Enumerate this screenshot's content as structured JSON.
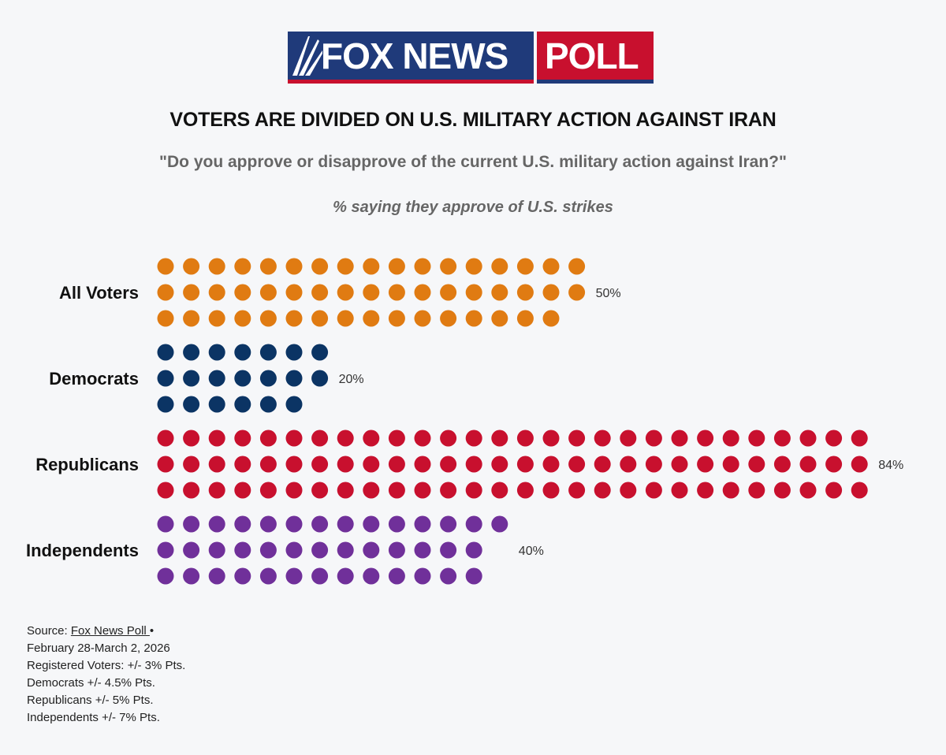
{
  "header": {
    "logo_left": "FOX NEWS",
    "logo_right": "POLL"
  },
  "title": "VOTERS ARE DIVIDED ON U.S. MILITARY ACTION AGAINST IRAN",
  "question": "\"Do you approve or disapprove of the current U.S. military action against Iran?\"",
  "subtitle": "% saying they approve of U.S. strikes",
  "chart_data": {
    "type": "bar",
    "title": "VOTERS ARE DIVIDED ON U.S. MILITARY ACTION AGAINST IRAN",
    "subtitle": "% saying they approve of U.S. strikes",
    "categories": [
      "All Voters",
      "Democrats",
      "Republicans",
      "Independents"
    ],
    "values": [
      50,
      20,
      84,
      40
    ],
    "value_labels": [
      "50%",
      "20%",
      "84%",
      "40%"
    ],
    "colors": [
      "#e07b12",
      "#0b3464",
      "#c8102e",
      "#70309a"
    ],
    "dot_rows": [
      [
        17,
        17,
        16
      ],
      [
        7,
        7,
        6
      ],
      [
        28,
        28,
        28
      ],
      [
        14,
        13,
        13
      ]
    ],
    "xlabel": "",
    "ylabel": "",
    "ylim": [
      0,
      100
    ]
  },
  "source": {
    "label": "Source: ",
    "link_text": "Fox News Poll ",
    "bullet": "•",
    "lines": [
      "February 28-March 2, 2026",
      "Registered Voters: +/- 3% Pts.",
      "Democrats +/- 4.5% Pts.",
      "Republicans +/- 5% Pts.",
      "Independents +/- 7% Pts."
    ]
  }
}
